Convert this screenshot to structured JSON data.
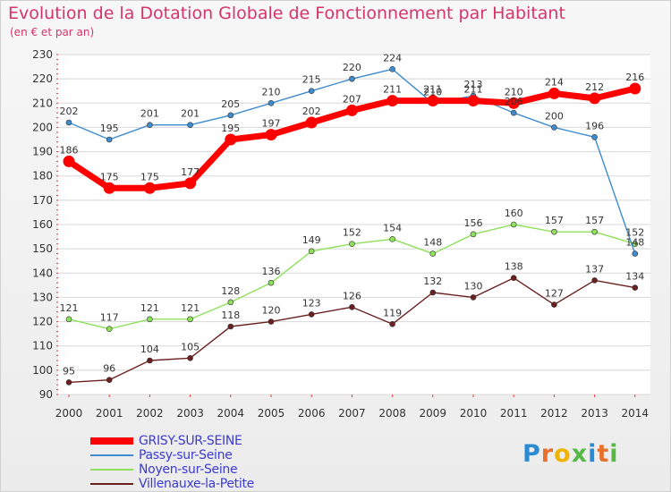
{
  "chart_data": {
    "type": "line",
    "title": "Evolution de la Dotation Globale de Fonctionnement par Habitant",
    "subtitle": "(en € et par an)",
    "xlabel": "",
    "ylabel": "",
    "categories": [
      "2000",
      "2001",
      "2002",
      "2003",
      "2004",
      "2005",
      "2006",
      "2007",
      "2008",
      "2009",
      "2010",
      "2011",
      "2012",
      "2013",
      "2014"
    ],
    "ylim": [
      90,
      230
    ],
    "yticks": [
      90,
      100,
      110,
      120,
      130,
      140,
      150,
      160,
      170,
      180,
      190,
      200,
      210,
      220,
      230
    ],
    "grid": "horizontal",
    "legend_position": "bottom-left",
    "series": [
      {
        "name": "GRISY-SUR-SEINE",
        "color": "#ff0000",
        "values": [
          186,
          175,
          175,
          177,
          195,
          197,
          202,
          207,
          211,
          211,
          211,
          210,
          214,
          212,
          216
        ]
      },
      {
        "name": "Passy-sur-Seine",
        "color": "#3e8ccf",
        "values": [
          202,
          195,
          201,
          201,
          205,
          210,
          215,
          220,
          224,
          210,
          213,
          206,
          200,
          196,
          148
        ]
      },
      {
        "name": "Noyen-sur-Seine",
        "color": "#8ee05a",
        "values": [
          121,
          117,
          121,
          121,
          128,
          136,
          149,
          152,
          154,
          148,
          156,
          160,
          157,
          157,
          152
        ]
      },
      {
        "name": "Villenauxe-la-Petite",
        "color": "#6b2020",
        "values": [
          95,
          96,
          104,
          105,
          118,
          120,
          123,
          126,
          119,
          132,
          130,
          138,
          127,
          137,
          134
        ]
      }
    ]
  },
  "logo": {
    "letters": [
      "P",
      "r",
      "o",
      "x",
      "i",
      "t",
      "i"
    ],
    "colors": [
      "#2a8bd4",
      "#e8702a",
      "#f0b400",
      "#56b847",
      "#2a8bd4",
      "#e8702a",
      "#56b847"
    ]
  }
}
